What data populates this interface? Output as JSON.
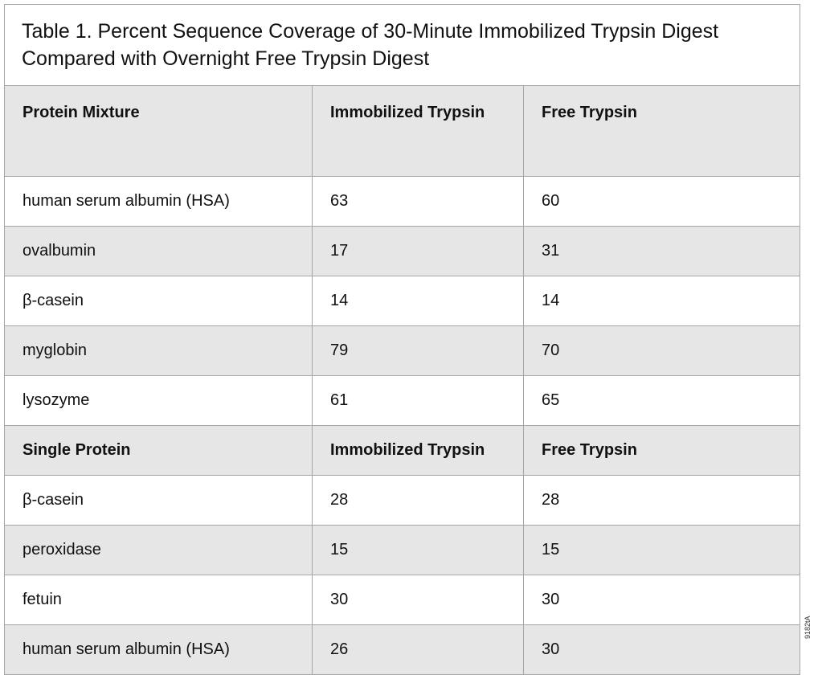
{
  "title": "Table 1. Percent Sequence Coverage of 30-Minute Immobilized Trypsin Digest Compared with Overnight Free Trypsin Digest",
  "sections": [
    {
      "header": [
        "Protein Mixture",
        "Immobilized Trypsin",
        "Free Trypsin"
      ],
      "rows": [
        [
          "human serum albumin (HSA)",
          "63",
          "60"
        ],
        [
          "ovalbumin",
          "17",
          "31"
        ],
        [
          "β-casein",
          "14",
          "14"
        ],
        [
          "myglobin",
          "79",
          "70"
        ],
        [
          "lysozyme",
          "61",
          "65"
        ]
      ]
    },
    {
      "header": [
        "Single Protein",
        "Immobilized Trypsin",
        "Free Trypsin"
      ],
      "rows": [
        [
          "β-casein",
          "28",
          "28"
        ],
        [
          "peroxidase",
          "15",
          "15"
        ],
        [
          "fetuin",
          "30",
          "30"
        ],
        [
          "human serum albumin (HSA)",
          "26",
          "30"
        ]
      ]
    }
  ],
  "figure_code": "9182tA",
  "colors": {
    "shaded_row": "#e6e6e6",
    "border": "#a6a6a6"
  }
}
